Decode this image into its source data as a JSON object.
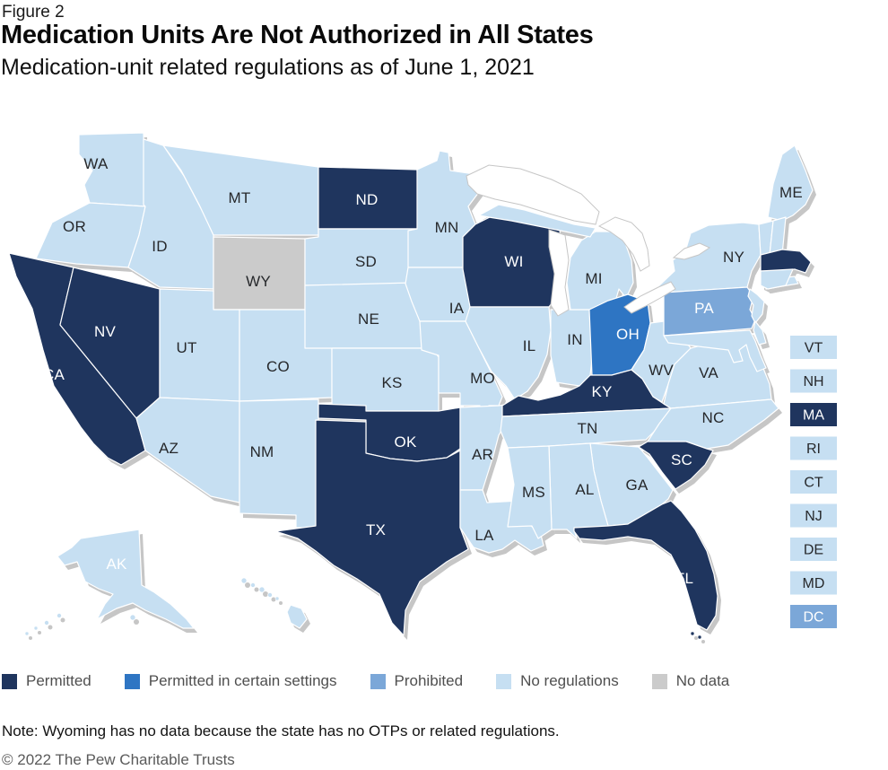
{
  "figure_label": "Figure 2",
  "title": "Medication Units Are Not Authorized in All States",
  "subtitle": "Medication-unit related regulations as of June 1, 2021",
  "note": "Note: Wyoming has no data because the state has no OTPs or related regulations.",
  "copyright": "© 2022 The Pew Charitable Trusts",
  "colors": {
    "permitted": "#1f355e",
    "certain": "#2e75c3",
    "prohibited": "#7ba7d8",
    "none": "#c6dff2",
    "nodata": "#cbcbcb",
    "shadow": "#c6c6c6",
    "lake": "#ffffff",
    "label_dark": "#26282b",
    "label_light": "#ffffff"
  },
  "legend": {
    "items": [
      {
        "key": "permitted",
        "label": "Permitted"
      },
      {
        "key": "certain",
        "label": "Permitted in certain settings"
      },
      {
        "key": "prohibited",
        "label": "Prohibited"
      },
      {
        "key": "none",
        "label": "No regulations"
      },
      {
        "key": "nodata",
        "label": "No data"
      }
    ]
  },
  "chart_data": {
    "type": "choropleth",
    "region": "United States",
    "title": "Medication Units Are Not Authorized in All States",
    "subtitle": "Medication-unit related regulations as of June 1, 2021",
    "legend_position": "bottom",
    "categories": {
      "permitted": "Permitted",
      "certain": "Permitted in certain settings",
      "prohibited": "Prohibited",
      "none": "No regulations",
      "nodata": "No data"
    },
    "states": [
      {
        "abbr": "WA",
        "status": "none"
      },
      {
        "abbr": "OR",
        "status": "none"
      },
      {
        "abbr": "CA",
        "status": "permitted"
      },
      {
        "abbr": "NV",
        "status": "permitted"
      },
      {
        "abbr": "ID",
        "status": "none"
      },
      {
        "abbr": "MT",
        "status": "none"
      },
      {
        "abbr": "WY",
        "status": "nodata"
      },
      {
        "abbr": "UT",
        "status": "none"
      },
      {
        "abbr": "CO",
        "status": "none"
      },
      {
        "abbr": "AZ",
        "status": "none"
      },
      {
        "abbr": "NM",
        "status": "none"
      },
      {
        "abbr": "ND",
        "status": "permitted"
      },
      {
        "abbr": "SD",
        "status": "none"
      },
      {
        "abbr": "NE",
        "status": "none"
      },
      {
        "abbr": "KS",
        "status": "none"
      },
      {
        "abbr": "OK",
        "status": "permitted"
      },
      {
        "abbr": "TX",
        "status": "permitted"
      },
      {
        "abbr": "MN",
        "status": "none"
      },
      {
        "abbr": "IA",
        "status": "none"
      },
      {
        "abbr": "MO",
        "status": "none"
      },
      {
        "abbr": "AR",
        "status": "none"
      },
      {
        "abbr": "LA",
        "status": "none"
      },
      {
        "abbr": "WI",
        "status": "permitted"
      },
      {
        "abbr": "IL",
        "status": "none"
      },
      {
        "abbr": "IN",
        "status": "none"
      },
      {
        "abbr": "MI",
        "status": "none"
      },
      {
        "abbr": "OH",
        "status": "certain"
      },
      {
        "abbr": "KY",
        "status": "permitted"
      },
      {
        "abbr": "TN",
        "status": "none"
      },
      {
        "abbr": "MS",
        "status": "none"
      },
      {
        "abbr": "AL",
        "status": "none"
      },
      {
        "abbr": "GA",
        "status": "none"
      },
      {
        "abbr": "FL",
        "status": "permitted"
      },
      {
        "abbr": "SC",
        "status": "permitted"
      },
      {
        "abbr": "NC",
        "status": "none"
      },
      {
        "abbr": "VA",
        "status": "none"
      },
      {
        "abbr": "WV",
        "status": "none"
      },
      {
        "abbr": "PA",
        "status": "prohibited"
      },
      {
        "abbr": "NY",
        "status": "none"
      },
      {
        "abbr": "ME",
        "status": "none"
      },
      {
        "abbr": "VT",
        "status": "none"
      },
      {
        "abbr": "NH",
        "status": "none"
      },
      {
        "abbr": "MA",
        "status": "permitted"
      },
      {
        "abbr": "RI",
        "status": "none"
      },
      {
        "abbr": "CT",
        "status": "none"
      },
      {
        "abbr": "NJ",
        "status": "none"
      },
      {
        "abbr": "DE",
        "status": "none"
      },
      {
        "abbr": "MD",
        "status": "none"
      },
      {
        "abbr": "DC",
        "status": "prohibited"
      },
      {
        "abbr": "AK",
        "status": "none"
      },
      {
        "abbr": "HI",
        "status": "none"
      }
    ],
    "small_states": [
      "VT",
      "NH",
      "MA",
      "RI",
      "CT",
      "NJ",
      "DE",
      "MD",
      "DC"
    ]
  }
}
